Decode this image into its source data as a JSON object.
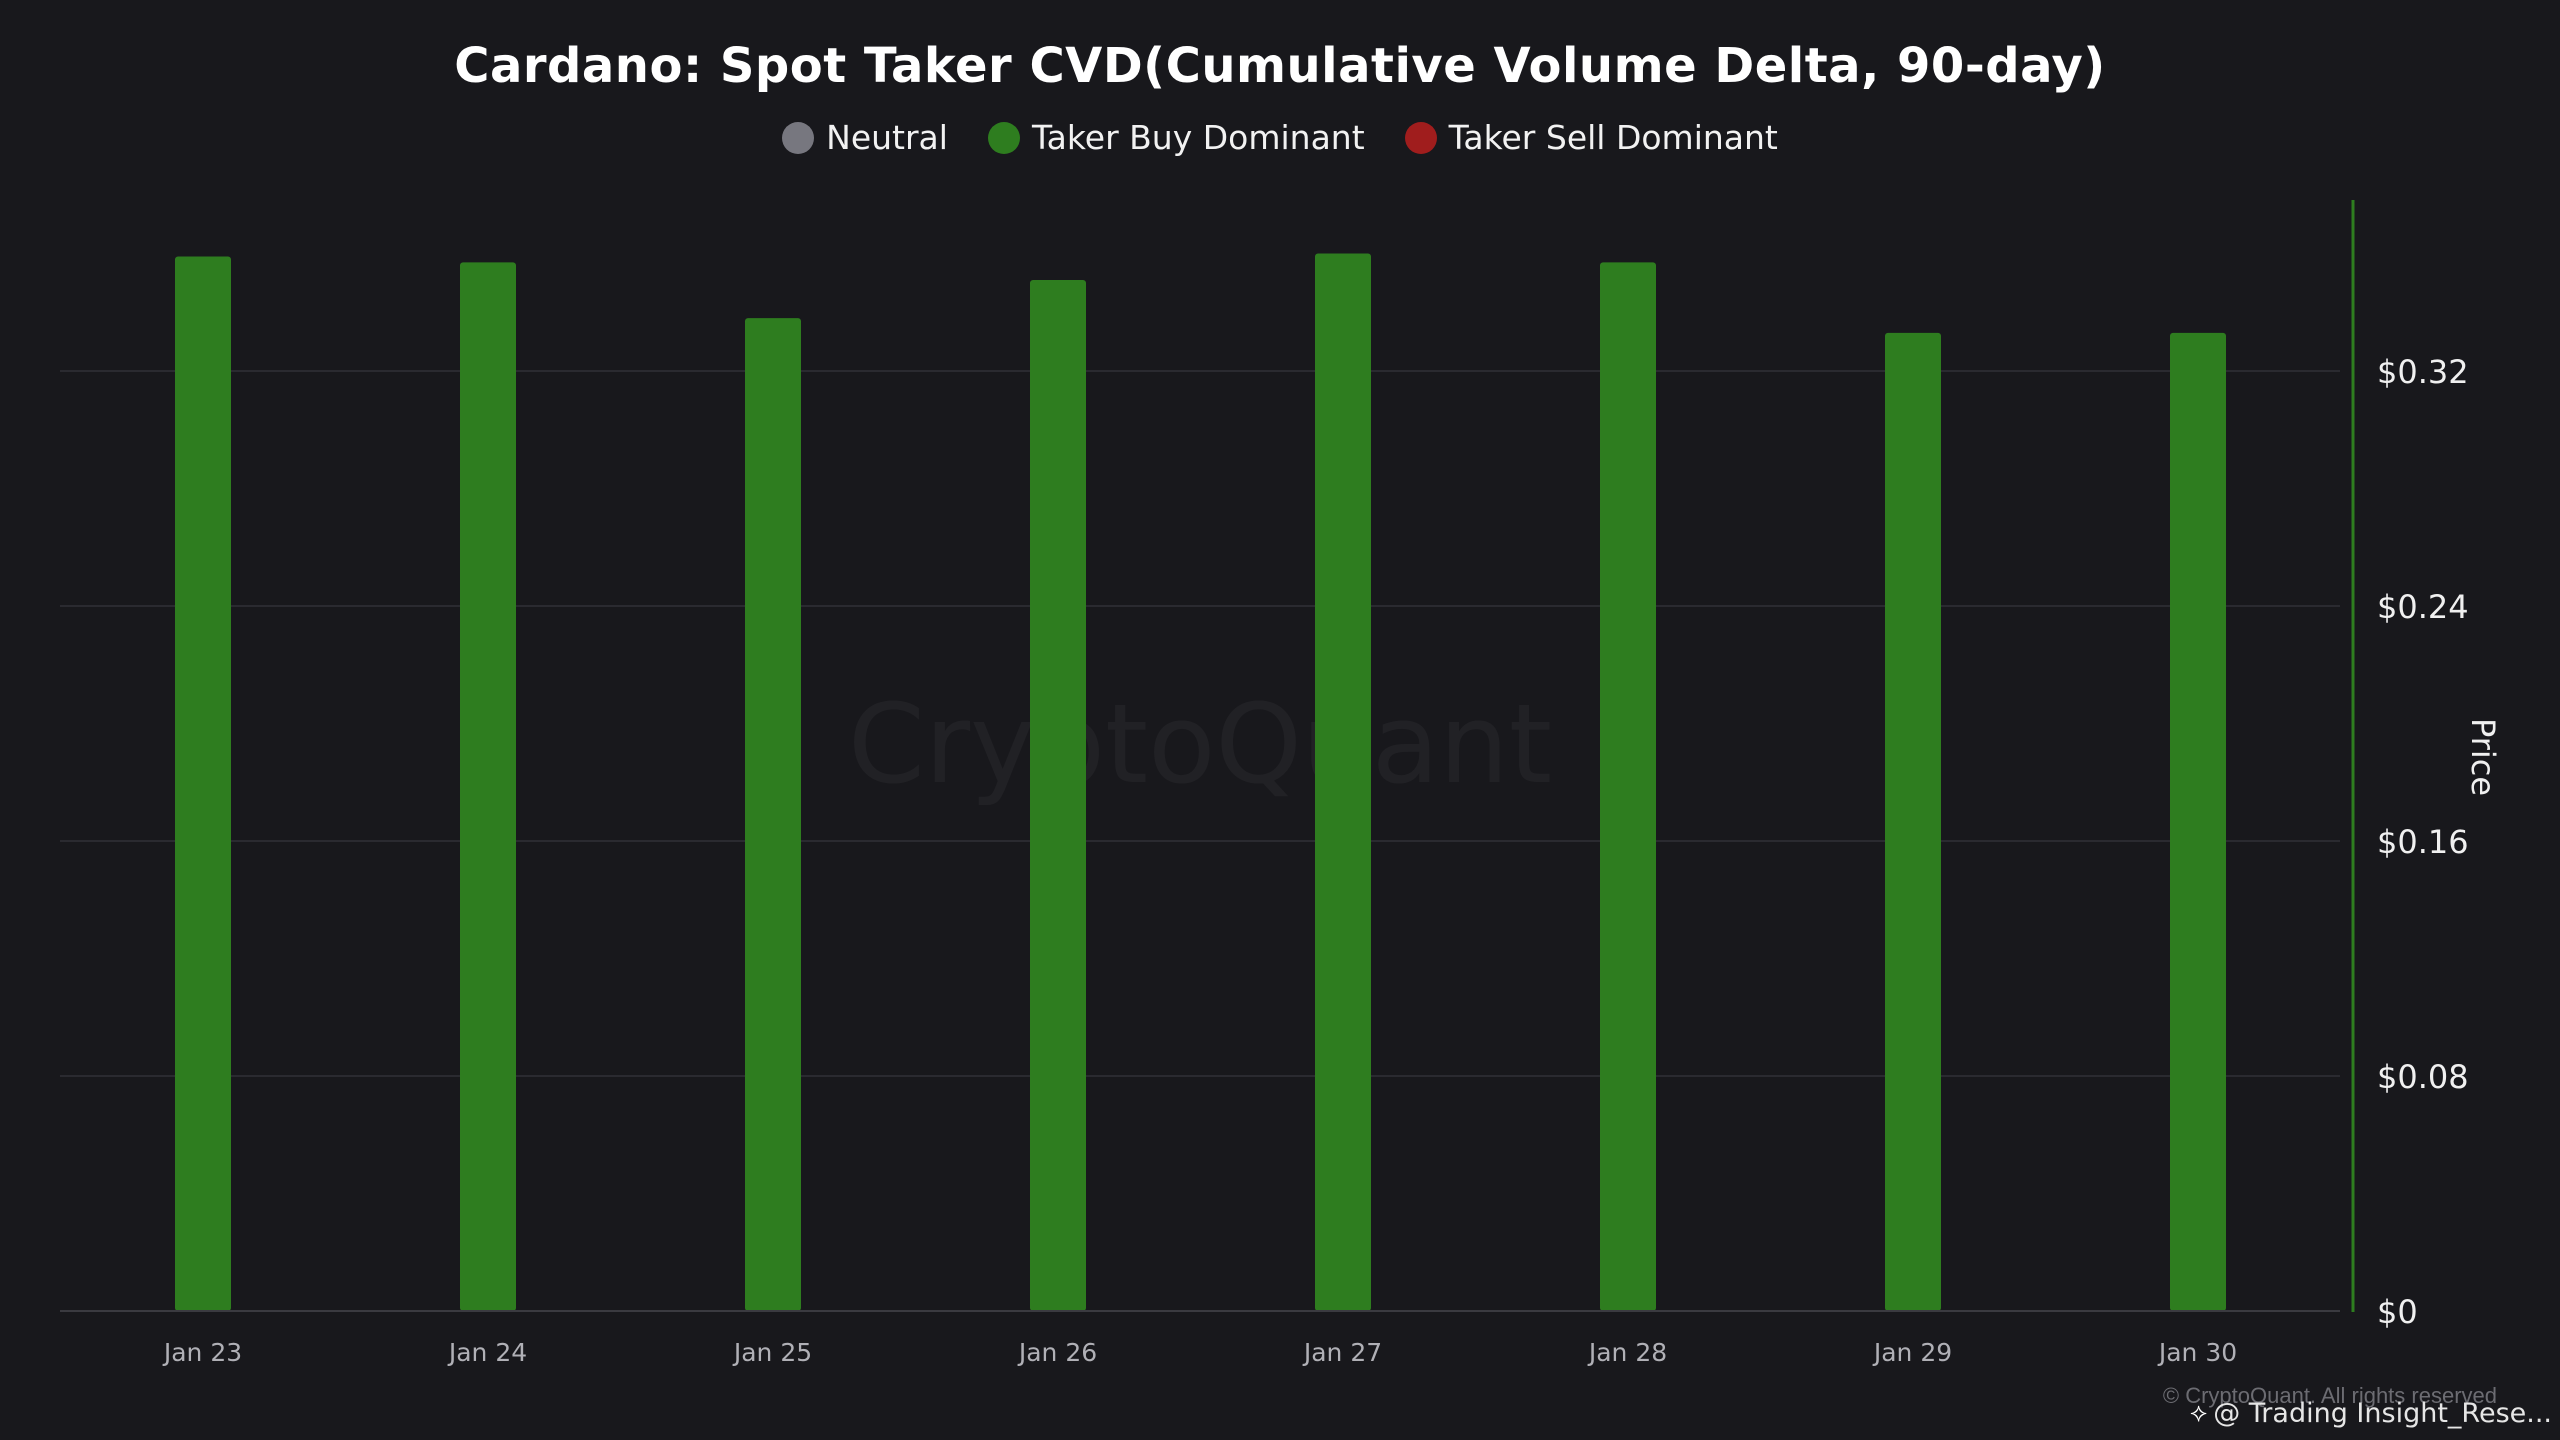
{
  "chart_data": {
    "type": "bar",
    "title": "Cardano: Spot Taker CVD(Cumulative Volume Delta, 90-day)",
    "categories": [
      "Jan 23",
      "Jan 24",
      "Jan 25",
      "Jan 26",
      "Jan 27",
      "Jan 28",
      "Jan 29",
      "Jan 30"
    ],
    "values": [
      0.359,
      0.357,
      0.338,
      0.351,
      0.36,
      0.357,
      0.333,
      0.333
    ],
    "bar_status": [
      "Taker Buy Dominant",
      "Taker Buy Dominant",
      "Taker Buy Dominant",
      "Taker Buy Dominant",
      "Taker Buy Dominant",
      "Taker Buy Dominant",
      "Taker Buy Dominant",
      "Taker Buy Dominant"
    ],
    "xlabel": "",
    "ylabel": "Price",
    "ylim": [
      0,
      0.38
    ],
    "yticks": [
      0,
      0.08,
      0.16,
      0.24,
      0.32
    ],
    "ytick_labels": [
      "$0",
      "$0.08",
      "$0.16",
      "$0.24",
      "$0.32"
    ],
    "y_axis_side": "right",
    "grid": true,
    "legend_placement": "top-center",
    "legend": [
      {
        "name": "Neutral",
        "color": "#77777f"
      },
      {
        "name": "Taker Buy Dominant",
        "color": "#2e7d1f"
      },
      {
        "name": "Taker Sell Dominant",
        "color": "#a01d1d"
      }
    ]
  },
  "colors": {
    "background": "#18181c",
    "bar": "#2e7d1f",
    "axis_line": "#2e7d1f",
    "grid": "#2a2a30"
  },
  "watermark": "CryptoQuant",
  "footer": {
    "copyright": "© CryptoQuant. All rights reserved",
    "credit": "@ Trading Insight_Rese...",
    "credit_icon": "binance-icon"
  }
}
